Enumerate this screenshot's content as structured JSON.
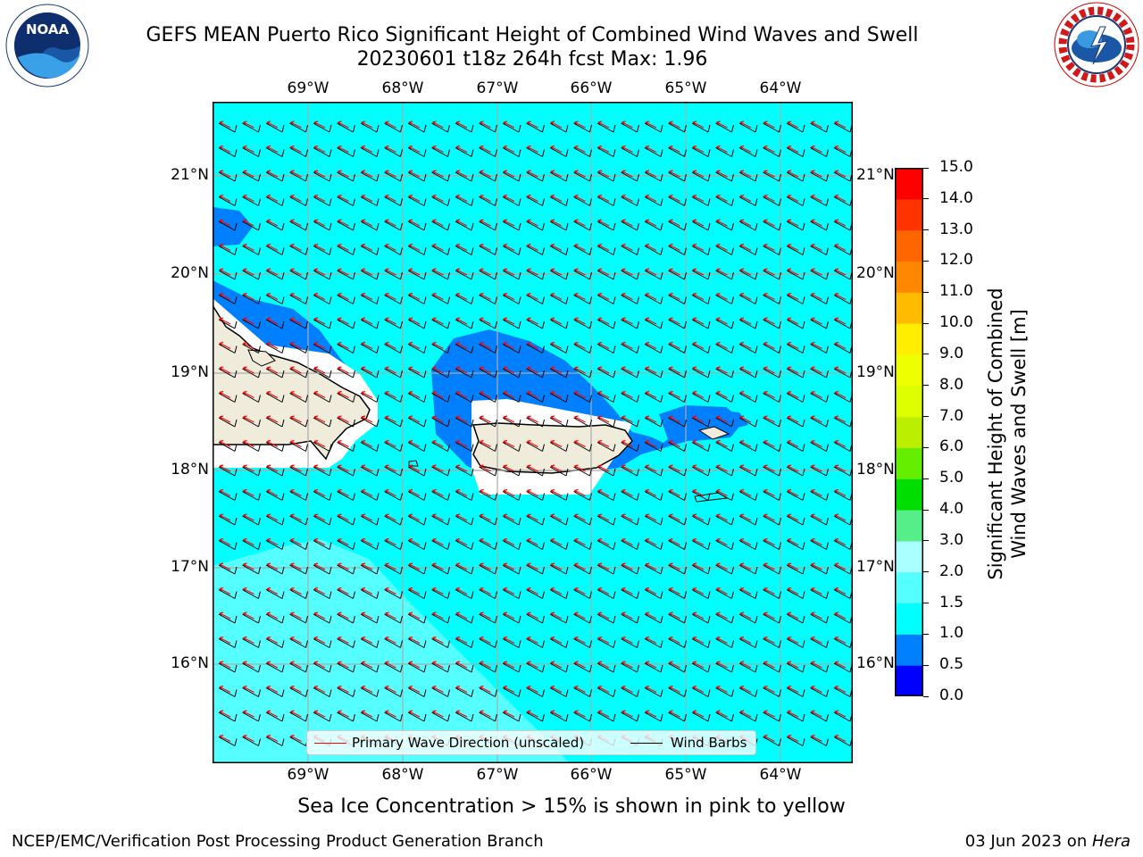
{
  "title": {
    "line1": "GEFS MEAN Puerto Rico Significant Height of Combined Wind Waves and Swell",
    "line2": "20230601 t18z 264h fcst   Max: 1.96"
  },
  "logos": {
    "left": "NOAA",
    "right": "NATIONAL WEATHER SERVICE"
  },
  "map": {
    "lon_labels": [
      "69°W",
      "68°W",
      "67°W",
      "66°W",
      "65°W",
      "64°W"
    ],
    "lat_labels": [
      "21°N",
      "20°N",
      "19°N",
      "18°N",
      "17°N",
      "16°N"
    ],
    "lon_range": [
      -70,
      -63.2
    ],
    "lat_range": [
      15.1,
      21.7
    ],
    "land_color": "#efecdc",
    "ocean_color": "#00ffff"
  },
  "legend": {
    "wave_label": "Primary Wave Direction (unscaled)",
    "wave_color": "#ff0000",
    "barb_label": "Wind Barbs",
    "barb_color": "#000000"
  },
  "colorbar": {
    "label_line1": "Significant Height of Combined",
    "label_line2": "Wind Waves and Swell [m]",
    "ticks": [
      "0.0",
      "0.5",
      "1.0",
      "1.5",
      "2.0",
      "3.0",
      "4.0",
      "5.0",
      "6.0",
      "7.0",
      "8.0",
      "9.0",
      "10.0",
      "11.0",
      "12.0",
      "13.0",
      "14.0",
      "15.0"
    ],
    "colors": [
      "#0000ff",
      "#0080ff",
      "#00ffff",
      "#55ffff",
      "#aaffff",
      "#55ee88",
      "#00dd00",
      "#66ee00",
      "#bbee00",
      "#ddff00",
      "#eeff00",
      "#ffee00",
      "#ffbb00",
      "#ff8800",
      "#ff6600",
      "#ff3300",
      "#ff0000"
    ]
  },
  "subtitle": "Sea Ice Concentration > 15% is shown in pink to yellow",
  "footer": {
    "left": "NCEP/EMC/Verification Post Processing Product Generation Branch",
    "right_prefix": "03 Jun 2023 on ",
    "right_host": "Hera"
  }
}
